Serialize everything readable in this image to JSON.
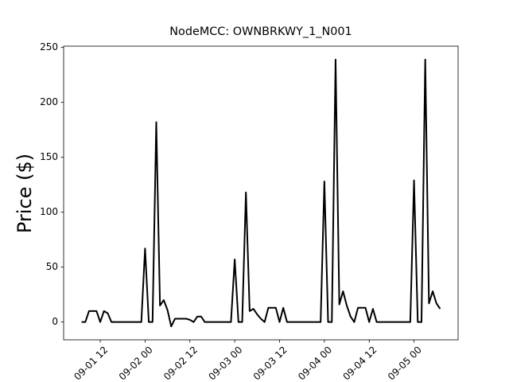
{
  "chart_data": {
    "type": "line",
    "title": "NodeMCC: OWNBRKWY_1_N001",
    "ylabel": "Price ($)",
    "color": "#000000",
    "x": [
      "09-01 07",
      "09-01 08",
      "09-01 09",
      "09-01 10",
      "09-01 11",
      "09-01 12",
      "09-01 13",
      "09-01 14",
      "09-01 15",
      "09-01 16",
      "09-01 17",
      "09-01 18",
      "09-01 19",
      "09-01 20",
      "09-01 21",
      "09-01 22",
      "09-01 23",
      "09-02 00",
      "09-02 01",
      "09-02 02",
      "09-02 03",
      "09-02 04",
      "09-02 05",
      "09-02 06",
      "09-02 07",
      "09-02 08",
      "09-02 09",
      "09-02 10",
      "09-02 11",
      "09-02 12",
      "09-02 13",
      "09-02 14",
      "09-02 15",
      "09-02 16",
      "09-02 17",
      "09-02 18",
      "09-02 19",
      "09-02 20",
      "09-02 21",
      "09-02 22",
      "09-02 23",
      "09-03 00",
      "09-03 01",
      "09-03 02",
      "09-03 03",
      "09-03 04",
      "09-03 05",
      "09-03 06",
      "09-03 07",
      "09-03 08",
      "09-03 09",
      "09-03 10",
      "09-03 11",
      "09-03 12",
      "09-03 13",
      "09-03 14",
      "09-03 15",
      "09-03 16",
      "09-03 17",
      "09-03 18",
      "09-03 19",
      "09-03 20",
      "09-03 21",
      "09-03 22",
      "09-03 23",
      "09-04 00",
      "09-04 01",
      "09-04 02",
      "09-04 03",
      "09-04 04",
      "09-04 05",
      "09-04 06",
      "09-04 07",
      "09-04 08",
      "09-04 09",
      "09-04 10",
      "09-04 11",
      "09-04 12",
      "09-04 13",
      "09-04 14",
      "09-04 15",
      "09-04 16",
      "09-04 17",
      "09-04 18",
      "09-04 19",
      "09-04 20",
      "09-04 21",
      "09-04 22",
      "09-04 23",
      "09-05 00",
      "09-05 01",
      "09-05 02",
      "09-05 03",
      "09-05 04",
      "09-05 05",
      "09-05 06",
      "09-05 07"
    ],
    "values": [
      0,
      0,
      10,
      10,
      10,
      0,
      10,
      8,
      0,
      0,
      0,
      0,
      0,
      0,
      0,
      0,
      0,
      67,
      0,
      0,
      182,
      15,
      20,
      11,
      -4,
      3,
      3,
      3,
      3,
      2,
      0,
      5,
      5,
      0,
      0,
      0,
      0,
      0,
      0,
      0,
      0,
      57,
      0,
      0,
      118,
      10,
      12,
      7,
      3,
      0,
      13,
      13,
      13,
      0,
      13,
      0,
      0,
      0,
      0,
      0,
      0,
      0,
      0,
      0,
      0,
      128,
      0,
      0,
      239,
      16,
      28,
      15,
      5,
      0,
      13,
      13,
      13,
      0,
      12,
      0,
      0,
      0,
      0,
      0,
      0,
      0,
      0,
      0,
      0,
      129,
      0,
      0,
      239,
      17,
      28,
      17,
      12
    ],
    "xlim": [
      "09-01 02:12",
      "09-05 11:48"
    ],
    "xticks": [
      "09-01 12",
      "09-02 00",
      "09-02 12",
      "09-03 00",
      "09-03 12",
      "09-04 00",
      "09-04 12",
      "09-05 00"
    ],
    "ylim": [
      -16.2,
      251.2
    ],
    "yticks": [
      0,
      50,
      100,
      150,
      200,
      250
    ]
  }
}
